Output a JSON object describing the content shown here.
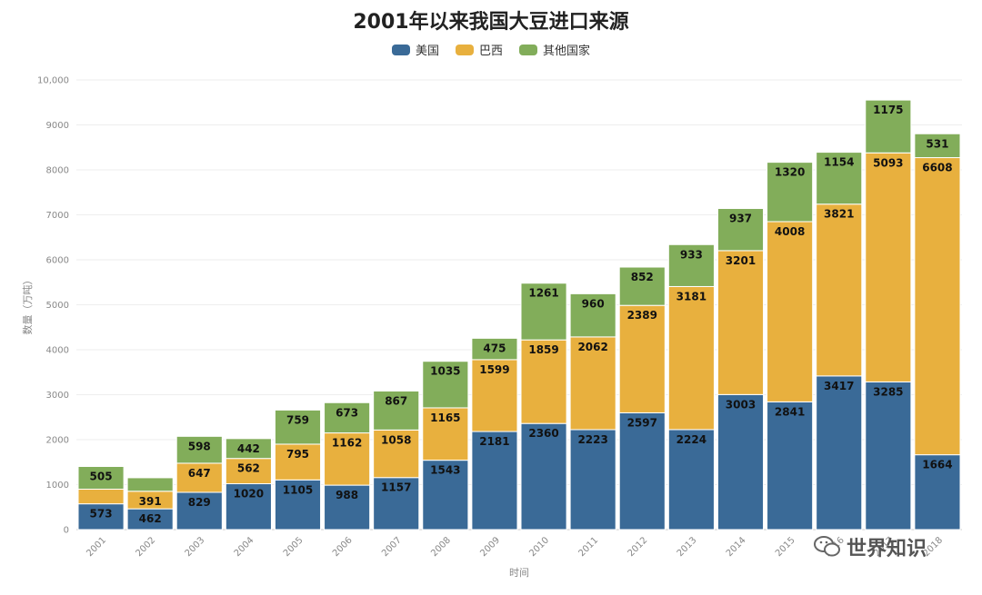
{
  "chart_data": {
    "type": "bar",
    "stacked": true,
    "title": "2001年以来我国大豆进口来源",
    "xlabel": "时间",
    "ylabel": "数量（万吨）",
    "ylim": [
      0,
      10000
    ],
    "yticks": [
      "0",
      "1000",
      "2000",
      "3000",
      "4000",
      "5000",
      "6000",
      "7000",
      "8000",
      "9000",
      "10,000"
    ],
    "grid": true,
    "legend_position": "top-center",
    "categories": [
      "2001",
      "2002",
      "2003",
      "2004",
      "2005",
      "2006",
      "2007",
      "2008",
      "2009",
      "2010",
      "2011",
      "2012",
      "2013",
      "2014",
      "2015",
      "2016",
      "2017",
      "2018"
    ],
    "series": [
      {
        "name": "美国",
        "color": "#3a6a97",
        "values": [
          573,
          462,
          829,
          1020,
          1105,
          988,
          1157,
          1543,
          2181,
          2360,
          2223,
          2597,
          2224,
          3003,
          2841,
          3417,
          3285,
          1664
        ]
      },
      {
        "name": "巴西",
        "color": "#e8b03e",
        "values": [
          326,
          391,
          647,
          562,
          795,
          1162,
          1058,
          1165,
          1599,
          1859,
          2062,
          2389,
          3181,
          3201,
          4008,
          3821,
          5093,
          6608
        ]
      },
      {
        "name": "其他国家",
        "color": "#82ad5a",
        "values": [
          505,
          300,
          598,
          442,
          759,
          673,
          867,
          1035,
          475,
          1261,
          960,
          852,
          933,
          937,
          1320,
          1154,
          1175,
          531
        ]
      }
    ],
    "labeled_flags": [
      [
        true,
        true,
        true,
        true,
        true,
        true,
        true,
        true,
        true,
        true,
        true,
        true,
        true,
        true,
        true,
        true,
        true,
        true
      ],
      [
        false,
        true,
        true,
        true,
        true,
        true,
        true,
        true,
        true,
        true,
        true,
        true,
        true,
        true,
        true,
        true,
        true,
        true
      ],
      [
        true,
        false,
        true,
        true,
        true,
        true,
        true,
        true,
        true,
        true,
        true,
        true,
        true,
        true,
        true,
        true,
        true,
        true
      ]
    ]
  },
  "watermark": {
    "icon": "wechat-icon",
    "text": "世界知识"
  }
}
